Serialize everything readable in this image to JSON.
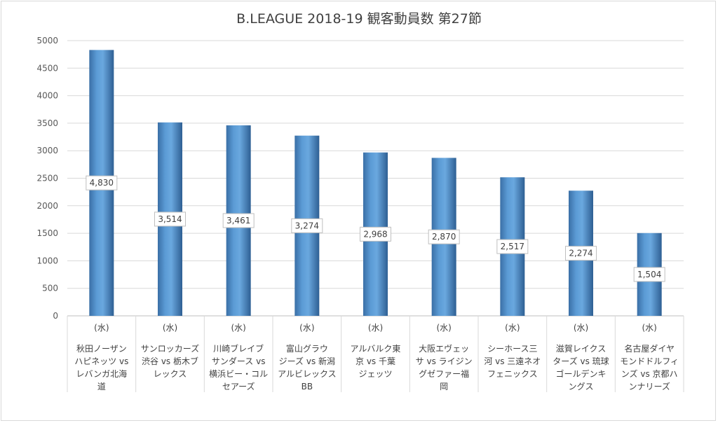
{
  "chart_data": {
    "type": "bar",
    "title": "B.LEAGUE 2018-19 観客動員数 第27節",
    "ylim": [
      0,
      5000
    ],
    "yticks": [
      0,
      500,
      1000,
      1500,
      2000,
      2500,
      3000,
      3500,
      4000,
      4500,
      5000
    ],
    "grid": true,
    "categories": [
      {
        "day": "(水)",
        "lines": [
          "秋田ノーザン",
          "ハピネッツ vs",
          "レバンガ北海",
          "道"
        ]
      },
      {
        "day": "(水)",
        "lines": [
          "サンロッカーズ",
          "渋谷 vs 栃木ブ",
          "レックス"
        ]
      },
      {
        "day": "(水)",
        "lines": [
          "川崎ブレイブ",
          "サンダース vs",
          "横浜ビー・コル",
          "セアーズ"
        ]
      },
      {
        "day": "(水)",
        "lines": [
          "富山グラウ",
          "ジーズ vs 新潟",
          "アルビレックス",
          "BB"
        ]
      },
      {
        "day": "(水)",
        "lines": [
          "アルバルク東",
          "京 vs 千葉",
          "ジェッツ"
        ]
      },
      {
        "day": "(水)",
        "lines": [
          "大阪エヴェッ",
          "サ vs ライジン",
          "グゼファー福",
          "岡"
        ]
      },
      {
        "day": "(水)",
        "lines": [
          "シーホース三",
          "河 vs 三遠ネオ",
          "フェニックス"
        ]
      },
      {
        "day": "(水)",
        "lines": [
          "滋賀レイクス",
          "ターズ vs 琉球",
          "ゴールデンキ",
          "ングス"
        ]
      },
      {
        "day": "(水)",
        "lines": [
          "名古屋ダイヤ",
          "モンドドルフィ",
          "ンズ vs 京都ハ",
          "ンナリーズ"
        ]
      }
    ],
    "values": [
      4830,
      3514,
      3461,
      3274,
      2968,
      2870,
      2517,
      2274,
      1504
    ],
    "data_labels": [
      "4,830",
      "3,514",
      "3,461",
      "3,274",
      "2,968",
      "2,870",
      "2,517",
      "2,274",
      "1,504"
    ]
  }
}
